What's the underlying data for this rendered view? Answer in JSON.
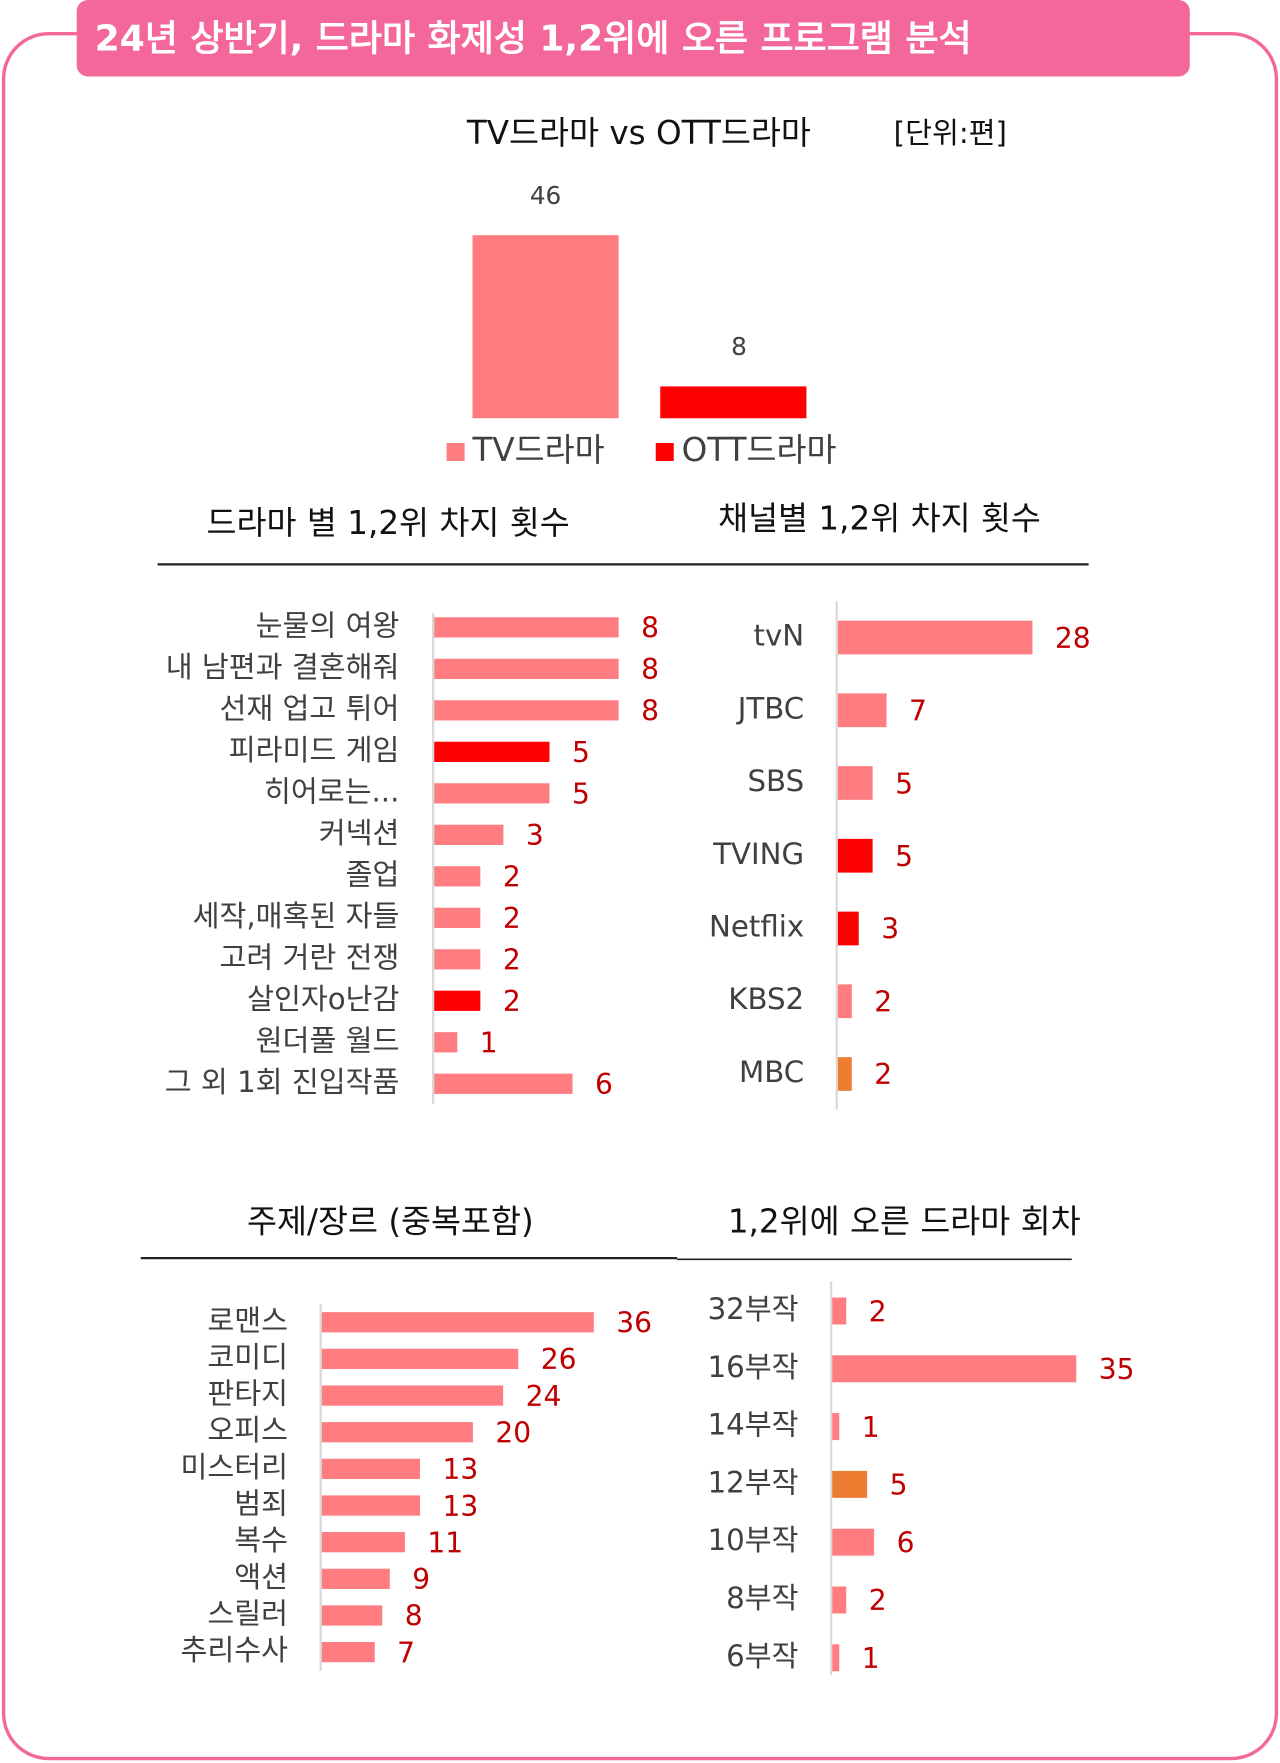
{
  "header": {
    "title": "24년 상반기, 드라마 화제성  1,2위에 오른 프로그램 분석"
  },
  "chart_data": [
    {
      "type": "bar",
      "title": "TV드라마 vs OTT드라마",
      "unit": "[단위:편]",
      "categories": [
        "TV드라마",
        "OTT드라마"
      ],
      "values": [
        46,
        8
      ],
      "colors": [
        "#ff7c80",
        "#ff0000"
      ],
      "legend": true
    },
    {
      "type": "barh",
      "title": "드라마 별 1,2위 차지 횟수",
      "categories": [
        "눈물의 여왕",
        "내 남편과 결혼해줘",
        "선재 업고 튀어",
        "피라미드 게임",
        "히어로는...",
        "커넥션",
        "졸업",
        "세작,매혹된 자들",
        "고려 거란 전쟁",
        "살인자o난감",
        "원더풀 월드",
        "그 외 1회 진입작품"
      ],
      "values": [
        8,
        8,
        8,
        5,
        5,
        3,
        2,
        2,
        2,
        2,
        1,
        6
      ],
      "colors": [
        "#ff7c80",
        "#ff7c80",
        "#ff7c80",
        "#ff0000",
        "#ff7c80",
        "#ff7c80",
        "#ff7c80",
        "#ff7c80",
        "#ff7c80",
        "#ff0000",
        "#ff7c80",
        "#ff7c80"
      ]
    },
    {
      "type": "barh",
      "title": "채널별 1,2위 차지 횟수",
      "categories": [
        "tvN",
        "JTBC",
        "SBS",
        "TVING",
        "Netflix",
        "KBS2",
        "MBC"
      ],
      "values": [
        28,
        7,
        5,
        5,
        3,
        2,
        2
      ],
      "colors": [
        "#ff7c80",
        "#ff7c80",
        "#ff7c80",
        "#ff0000",
        "#ff0000",
        "#ff7c80",
        "#ed7d31"
      ]
    },
    {
      "type": "barh",
      "title": "주제/장르 (중복포함)",
      "categories": [
        "로맨스",
        "코미디",
        "판타지",
        "오피스",
        "미스터리",
        "범죄",
        "복수",
        "액션",
        "스릴러",
        "추리수사"
      ],
      "values": [
        36,
        26,
        24,
        20,
        13,
        13,
        11,
        9,
        8,
        7
      ],
      "colors": [
        "#ff7c80",
        "#ff7c80",
        "#ff7c80",
        "#ff7c80",
        "#ff7c80",
        "#ff7c80",
        "#ff7c80",
        "#ff7c80",
        "#ff7c80",
        "#ff7c80"
      ]
    },
    {
      "type": "barh",
      "title": "1,2위에 오른 드라마 회차",
      "categories": [
        "32부작",
        "16부작",
        "14부작",
        "12부작",
        "10부작",
        "8부작",
        "6부작"
      ],
      "values": [
        2,
        35,
        1,
        5,
        6,
        2,
        1
      ],
      "colors": [
        "#ff7c80",
        "#ff7c80",
        "#ff7c80",
        "#ed7d31",
        "#ff7c80",
        "#ff7c80",
        "#ff7c80"
      ]
    }
  ]
}
